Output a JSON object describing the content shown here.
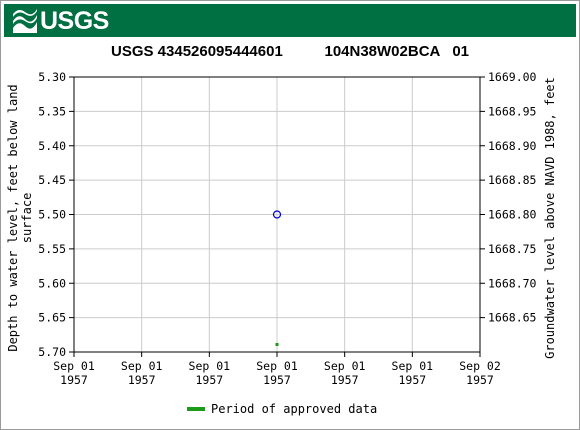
{
  "header": {
    "logo_text": "USGS"
  },
  "chart_data": {
    "type": "scatter",
    "title_site": "USGS 434526095444601",
    "title_local": "104N38W02BCA   01",
    "ylabel_left_line1": "Depth to water level, feet below land",
    "ylabel_left_line2": "surface",
    "ylabel_right": "Groundwater level above NAVD 1988, feet",
    "y_left_ticks": [
      "5.30",
      "5.35",
      "5.40",
      "5.45",
      "5.50",
      "5.55",
      "5.60",
      "5.65",
      "5.70"
    ],
    "y_left_range": [
      5.3,
      5.7
    ],
    "y_right_ticks": [
      "1669.00",
      "1668.95",
      "1668.90",
      "1668.85",
      "1668.80",
      "1668.75",
      "1668.70",
      "1668.65"
    ],
    "y_right_values": [
      1669.0,
      1668.95,
      1668.9,
      1668.85,
      1668.8,
      1668.75,
      1668.7,
      1668.65
    ],
    "x_ticks": [
      {
        "line1": "Sep 01",
        "line2": "1957"
      },
      {
        "line1": "Sep 01",
        "line2": "1957"
      },
      {
        "line1": "Sep 01",
        "line2": "1957"
      },
      {
        "line1": "Sep 01",
        "line2": "1957"
      },
      {
        "line1": "Sep 01",
        "line2": "1957"
      },
      {
        "line1": "Sep 01",
        "line2": "1957"
      },
      {
        "line1": "Sep 02",
        "line2": "1957"
      }
    ],
    "series": [
      {
        "points": [
          {
            "x": "1957-09-01 12:00",
            "y": 5.5
          }
        ],
        "marker": "open-circle",
        "color": "#0000cc"
      }
    ],
    "approved_period": {
      "x": "1957-09-01 12:00",
      "color": "#1a9c1a"
    },
    "legend": [
      {
        "label": "Period of approved data",
        "color": "#1a9c1a"
      }
    ],
    "grid": true,
    "legend_position": "bottom-center"
  }
}
